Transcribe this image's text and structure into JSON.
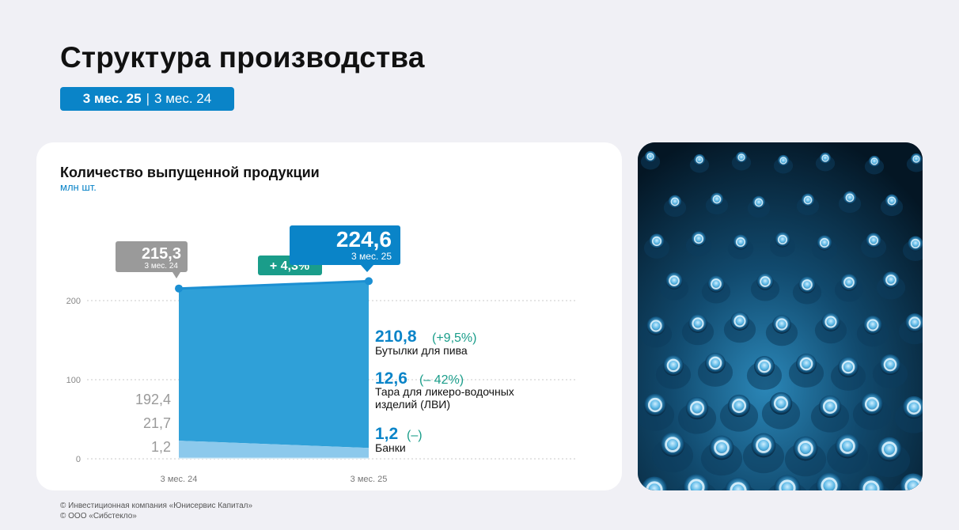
{
  "page": {
    "title": "Структура производства",
    "period_current": "3 мес. 25",
    "period_separator": "|",
    "period_previous": "3 мес. 24"
  },
  "card": {
    "title": "Количество выпущенной продукции",
    "unit": "млн шт."
  },
  "footer": {
    "line1": "© Инвестиционная компания «Юнисервис Капитал»",
    "line2": "© ООО «Сибстекло»"
  },
  "colors": {
    "accent_blue": "#0a84c8",
    "area_main": "#2fa0d8",
    "area_light": "#8cc9ec",
    "line_top": "#1b8fd2",
    "badge_gray": "#9a9a9a",
    "growth_green": "#1a9d8a",
    "label_gray": "#9a9a9a"
  },
  "photo": {
    "icon": "glass-bottles-photo"
  },
  "chart_data": {
    "type": "area",
    "x": [
      "3 мес. 24",
      "3 мес. 25"
    ],
    "yticks": [
      "0",
      "100",
      "200"
    ],
    "ylim": [
      0,
      240
    ],
    "grid": true,
    "totals": [
      215.3,
      224.6
    ],
    "total_labels": {
      "prev_value": "215,3",
      "prev_period": "3 мес. 24",
      "cur_value": "224,6",
      "cur_period": "3 мес. 25"
    },
    "growth_label": "+ 4,3%",
    "series": [
      {
        "name": "Бутылки для пива",
        "values": [
          192.4,
          210.8
        ],
        "prev_label": "192,4",
        "cur_value": "210,8",
        "cur_change": "(+9,5%)"
      },
      {
        "name": "Тара для ликеро-водочных изделий (ЛВИ)",
        "name_line1": "Тара для ликеро-водочных",
        "name_line2": "изделий (ЛВИ)",
        "values": [
          21.7,
          12.6
        ],
        "prev_label": "21,7",
        "cur_value": "12,6",
        "cur_change": "(– 42%)"
      },
      {
        "name": "Банки",
        "values": [
          1.2,
          1.2
        ],
        "prev_label": "1,2",
        "cur_value": "1,2",
        "cur_change": "(–)"
      }
    ]
  }
}
